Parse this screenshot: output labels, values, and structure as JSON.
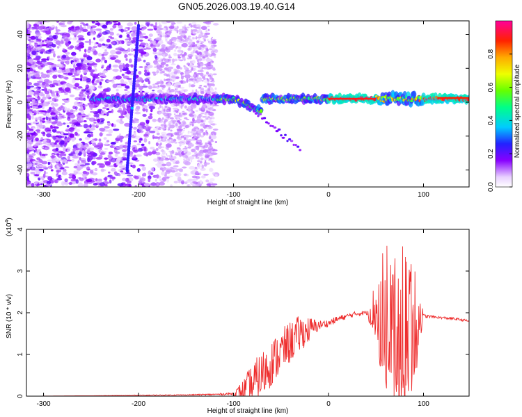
{
  "figure_title": "GN05.2026.003.19.40.G14",
  "chart_data": [
    {
      "type": "heatmap",
      "title": "GN05.2026.003.19.40.G14",
      "xlabel": "Height of straight line (km)",
      "ylabel": "Frequency (Hz)",
      "xlim": [
        -318,
        148
      ],
      "ylim": [
        -50,
        48
      ],
      "xticks": [
        -300,
        -200,
        -100,
        0,
        100
      ],
      "yticks": [
        -40,
        -20,
        0,
        20,
        40
      ],
      "colorbar": {
        "label": "Normalized spectral amplitude",
        "range": [
          0,
          1
        ],
        "ticks": [
          0.0,
          0.2,
          0.4,
          0.6,
          0.8
        ],
        "tick_labels": [
          "0.0",
          "0.2",
          "0.4",
          "0.6",
          "0.8"
        ]
      },
      "features": [
        {
          "name": "carrier-band",
          "x_range": [
            -250,
            148
          ],
          "frequency": 2,
          "peak_amplitude": 1.0
        },
        {
          "name": "direct-signal-streak",
          "x_start": -212,
          "x_end": -200,
          "f_start": -40,
          "f_end": 45
        },
        {
          "name": "descending-streak",
          "x_start": -85,
          "x_end": -30,
          "f_start": -2,
          "f_end": -28
        }
      ]
    },
    {
      "type": "line",
      "xlabel": "Height of straight line (km)",
      "ylabel": "SNR (10 * v/v)",
      "y_multiplier_label": "(x10",
      "y_multiplier_exp": "4",
      "xlim": [
        -318,
        148
      ],
      "ylim": [
        0,
        4
      ],
      "xticks": [
        -300,
        -200,
        -100,
        0,
        100
      ],
      "yticks": [
        0,
        1,
        2,
        3,
        4
      ],
      "series": [
        {
          "name": "SNR",
          "color": "#ee2b2b",
          "x": [
            -318,
            -250,
            -200,
            -150,
            -120,
            -100,
            -90,
            -80,
            -70,
            -60,
            -50,
            -40,
            -30,
            -20,
            -10,
            0,
            10,
            20,
            30,
            40,
            50,
            60,
            70,
            80,
            90,
            100,
            110,
            120,
            130,
            140,
            148
          ],
          "y": [
            0.0,
            0.01,
            0.02,
            0.03,
            0.04,
            0.06,
            0.1,
            0.25,
            0.5,
            0.8,
            1.05,
            1.3,
            1.5,
            1.6,
            1.7,
            1.75,
            1.85,
            1.92,
            1.98,
            2.0,
            2.05,
            2.1,
            2.0,
            2.0,
            1.95,
            1.92,
            1.9,
            1.88,
            1.86,
            1.83,
            1.8
          ],
          "noise_amplitude": [
            0,
            0,
            0.01,
            0.01,
            0.02,
            0.03,
            0.3,
            0.55,
            0.6,
            0.55,
            0.55,
            0.5,
            0.45,
            0.3,
            0.12,
            0.08,
            0.08,
            0.06,
            0.06,
            0.05,
            0.8,
            1.6,
            1.8,
            1.8,
            1.6,
            0.05,
            0.03,
            0.03,
            0.03,
            0.03,
            0.03
          ]
        }
      ]
    }
  ]
}
